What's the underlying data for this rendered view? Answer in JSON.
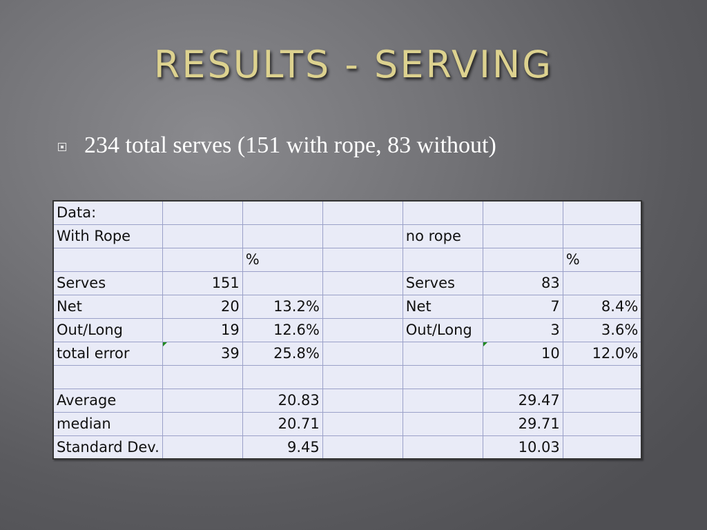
{
  "title": "RESULTS - SERVING",
  "bullet": {
    "icon": "square-bullet-icon",
    "text": "234 total serves (151 with rope, 83 without)"
  },
  "table": {
    "rows": [
      [
        "Data:",
        "",
        "",
        "",
        "",
        "",
        ""
      ],
      [
        "With Rope",
        "",
        "",
        "",
        "no rope",
        "",
        ""
      ],
      [
        "",
        "",
        "%",
        "",
        "",
        "",
        "%"
      ],
      [
        "Serves",
        "151",
        "",
        "",
        "Serves",
        "83",
        ""
      ],
      [
        "Net",
        "20",
        "13.2%",
        "",
        "Net",
        "7",
        "8.4%"
      ],
      [
        "Out/Long",
        "19",
        "12.6%",
        "",
        "Out/Long",
        "3",
        "3.6%"
      ],
      [
        "total error",
        "39",
        "25.8%",
        "",
        "",
        "10",
        "12.0%"
      ],
      [
        "",
        "",
        "",
        "",
        "",
        "",
        ""
      ],
      [
        "Average",
        "",
        "20.83",
        "",
        "",
        "29.47",
        ""
      ],
      [
        "median",
        "",
        "20.71",
        "",
        "",
        "29.71",
        ""
      ],
      [
        "Standard Dev.",
        "",
        "9.45",
        "",
        "",
        "10.03",
        ""
      ]
    ]
  }
}
